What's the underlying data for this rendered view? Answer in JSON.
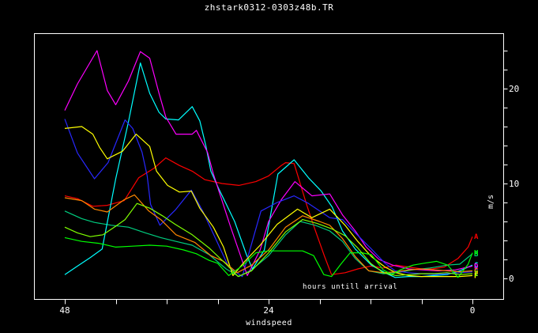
{
  "title": "zhstark0312-0303z48b.TR",
  "labels": {
    "xlabel": "windspeed",
    "inner_annotation": "hours untill arrival",
    "y_unit": "m/s"
  },
  "colors": {
    "background": "#000000",
    "frame": "#ffffff",
    "text": "#ffffff"
  },
  "chart_data": {
    "type": "line",
    "title": "zhstark0312-0303z48b.TR",
    "xlabel": "windspeed",
    "ylabel": "m/s",
    "inner_annotation": "hours untill arrival",
    "x_axis": {
      "unit": "hours untill arrival",
      "left_value": 48,
      "right_value": 0,
      "tick_step": 6,
      "labeled_ticks": [
        48,
        24,
        0
      ]
    },
    "y_axis": {
      "unit": "m/s",
      "min": -2.2,
      "max": 25.8,
      "tick_step": 2,
      "tick_min": 0,
      "tick_max": 24,
      "labeled_ticks": [
        0,
        10,
        20
      ],
      "side": "right"
    },
    "grid": false,
    "legend": "end-of-line letter markers",
    "series": [
      {
        "name": "A",
        "color": "#ff0000",
        "end_label": "A",
        "points": [
          [
            48,
            8.7
          ],
          [
            46.5,
            8.4
          ],
          [
            44.7,
            7.6
          ],
          [
            43,
            7.7
          ],
          [
            41,
            8.2
          ],
          [
            39.3,
            10.6
          ],
          [
            37.5,
            11.6
          ],
          [
            36.1,
            12.7
          ],
          [
            34.5,
            11.9
          ],
          [
            33,
            11.3
          ],
          [
            31.5,
            10.4
          ],
          [
            29.5,
            10.0
          ],
          [
            27.5,
            9.8
          ],
          [
            25.5,
            10.2
          ],
          [
            24,
            10.8
          ],
          [
            22.5,
            11.9
          ],
          [
            22,
            12.2
          ],
          [
            21,
            12.1
          ],
          [
            19.5,
            7.7
          ],
          [
            18.6,
            5.3
          ],
          [
            17.4,
            2.3
          ],
          [
            16.6,
            0.4
          ],
          [
            15,
            0.6
          ],
          [
            13.5,
            1.0
          ],
          [
            12,
            1.3
          ],
          [
            10.5,
            1.1
          ],
          [
            9,
            1.4
          ],
          [
            7.5,
            1.2
          ],
          [
            6,
            1.0
          ],
          [
            4.7,
            1.0
          ],
          [
            3.3,
            1.2
          ],
          [
            1.7,
            2.1
          ],
          [
            0.5,
            3.3
          ],
          [
            0,
            4.4
          ]
        ]
      },
      {
        "name": "B",
        "color": "#00cd7f",
        "end_label": "B",
        "points": [
          [
            48,
            7.1
          ],
          [
            46,
            6.3
          ],
          [
            44.5,
            5.9
          ],
          [
            42.5,
            5.6
          ],
          [
            40.5,
            5.4
          ],
          [
            38.5,
            4.8
          ],
          [
            36.7,
            4.3
          ],
          [
            34.9,
            3.9
          ],
          [
            33,
            3.5
          ],
          [
            31,
            2.5
          ],
          [
            29,
            1.0
          ],
          [
            27.5,
            0.2
          ],
          [
            26,
            0.9
          ],
          [
            24,
            2.4
          ],
          [
            22,
            4.6
          ],
          [
            20.3,
            6.0
          ],
          [
            18.5,
            5.6
          ],
          [
            16.8,
            5.0
          ],
          [
            15.3,
            3.9
          ],
          [
            13.8,
            2.1
          ],
          [
            12.2,
            0.8
          ],
          [
            10.5,
            0.5
          ],
          [
            9,
            0.6
          ],
          [
            7,
            0.9
          ],
          [
            5,
            1.1
          ],
          [
            3,
            1.4
          ],
          [
            1.5,
            1.5
          ],
          [
            0,
            2.6
          ]
        ]
      },
      {
        "name": "C",
        "color": "#00ffff",
        "end_label": "C",
        "points": [
          [
            48,
            0.4
          ],
          [
            46.5,
            1.3
          ],
          [
            45,
            2.2
          ],
          [
            43.6,
            3.1
          ],
          [
            42,
            10.5
          ],
          [
            40.5,
            16.5
          ],
          [
            39.1,
            22.7
          ],
          [
            38,
            19.5
          ],
          [
            36.9,
            17.5
          ],
          [
            36.1,
            16.8
          ],
          [
            34.6,
            16.7
          ],
          [
            33,
            18.1
          ],
          [
            32.1,
            16.6
          ],
          [
            31.4,
            14.0
          ],
          [
            30.8,
            11.3
          ],
          [
            29.9,
            9.5
          ],
          [
            28,
            6.0
          ],
          [
            26.6,
            2.5
          ],
          [
            25.9,
            1.0
          ],
          [
            24.5,
            3.0
          ],
          [
            22.9,
            11.0
          ],
          [
            21,
            12.5
          ],
          [
            19.3,
            10.6
          ],
          [
            17.8,
            9.2
          ],
          [
            16.5,
            7.5
          ],
          [
            15.3,
            5.0
          ],
          [
            13.8,
            3.1
          ],
          [
            11.9,
            1.4
          ],
          [
            10.3,
            0.6
          ],
          [
            9.1,
            0.1
          ],
          [
            7.5,
            0.2
          ],
          [
            6,
            0.2
          ],
          [
            4.5,
            0.3
          ],
          [
            3,
            0.4
          ],
          [
            1.5,
            0.8
          ],
          [
            0,
            1.4
          ]
        ]
      },
      {
        "name": "D",
        "color": "#ff00ff",
        "end_label": "D",
        "points": [
          [
            48,
            17.7
          ],
          [
            46.5,
            20.5
          ],
          [
            44.2,
            24.0
          ],
          [
            43,
            19.8
          ],
          [
            42,
            18.3
          ],
          [
            40.5,
            20.8
          ],
          [
            39.1,
            23.9
          ],
          [
            38,
            23.2
          ],
          [
            36.9,
            19.5
          ],
          [
            36.1,
            17.0
          ],
          [
            34.9,
            15.2
          ],
          [
            33,
            15.2
          ],
          [
            32.5,
            15.6
          ],
          [
            31.2,
            13.3
          ],
          [
            30.5,
            11.0
          ],
          [
            28.5,
            5.5
          ],
          [
            26.5,
            0.3
          ],
          [
            25,
            3.0
          ],
          [
            24,
            6.0
          ],
          [
            22.5,
            8.3
          ],
          [
            20.9,
            10.2
          ],
          [
            18.9,
            8.7
          ],
          [
            16.8,
            8.9
          ],
          [
            15.3,
            6.7
          ],
          [
            13.8,
            5.0
          ],
          [
            12.5,
            3.3
          ],
          [
            11,
            2.0
          ],
          [
            9.4,
            1.4
          ],
          [
            7.5,
            1.0
          ],
          [
            6,
            0.9
          ],
          [
            4,
            0.8
          ],
          [
            2,
            0.9
          ],
          [
            0,
            1.3
          ]
        ]
      },
      {
        "name": "E",
        "color": "#2828ff",
        "end_label": "E",
        "points": [
          [
            48,
            16.8
          ],
          [
            46.5,
            13.2
          ],
          [
            44.5,
            10.5
          ],
          [
            42.9,
            12.2
          ],
          [
            40.9,
            16.7
          ],
          [
            40,
            15.8
          ],
          [
            38.9,
            13.3
          ],
          [
            38.3,
            10.8
          ],
          [
            37.9,
            7.8
          ],
          [
            36.8,
            5.6
          ],
          [
            35,
            7.2
          ],
          [
            33.1,
            9.3
          ],
          [
            31.7,
            7.0
          ],
          [
            30.2,
            4.1
          ],
          [
            28.7,
            1.2
          ],
          [
            27.1,
            0.2
          ],
          [
            24.9,
            7.1
          ],
          [
            23,
            8.0
          ],
          [
            21,
            8.7
          ],
          [
            19.3,
            7.9
          ],
          [
            16.8,
            6.4
          ],
          [
            15.3,
            6.2
          ],
          [
            13.8,
            4.8
          ],
          [
            11.9,
            3.1
          ],
          [
            10.3,
            1.6
          ],
          [
            9.1,
            0.8
          ],
          [
            7.5,
            0.6
          ],
          [
            6,
            0.5
          ],
          [
            4.5,
            0.4
          ],
          [
            3,
            0.5
          ],
          [
            1.5,
            0.6
          ],
          [
            0,
            0.7
          ]
        ]
      },
      {
        "name": "F",
        "color": "#ffff00",
        "end_label": "F",
        "points": [
          [
            48,
            15.8
          ],
          [
            46,
            16.0
          ],
          [
            44.7,
            15.2
          ],
          [
            43.9,
            13.8
          ],
          [
            43,
            12.6
          ],
          [
            41.2,
            13.4
          ],
          [
            39.6,
            15.2
          ],
          [
            38,
            13.9
          ],
          [
            37.2,
            11.3
          ],
          [
            35.9,
            9.8
          ],
          [
            34.5,
            9.1
          ],
          [
            33.1,
            9.2
          ],
          [
            32.1,
            7.4
          ],
          [
            30.5,
            5.4
          ],
          [
            29.3,
            3.3
          ],
          [
            28.2,
            0.3
          ],
          [
            26.8,
            1.8
          ],
          [
            25,
            3.5
          ],
          [
            23,
            5.7
          ],
          [
            20.6,
            7.3
          ],
          [
            18.9,
            6.4
          ],
          [
            16.8,
            7.3
          ],
          [
            15,
            5.6
          ],
          [
            13.5,
            3.9
          ],
          [
            11.9,
            2.3
          ],
          [
            10.3,
            1.2
          ],
          [
            9,
            0.6
          ],
          [
            7.5,
            0.3
          ],
          [
            6,
            0.2
          ],
          [
            4.5,
            0.2
          ],
          [
            3,
            0.2
          ],
          [
            1.5,
            0.2
          ],
          [
            0,
            0.3
          ]
        ]
      },
      {
        "name": "G",
        "color": "#ff8700",
        "end_label": "G",
        "points": [
          [
            48,
            8.5
          ],
          [
            46,
            8.2
          ],
          [
            44.5,
            7.3
          ],
          [
            43,
            7.0
          ],
          [
            41,
            8.3
          ],
          [
            39.8,
            8.8
          ],
          [
            38.1,
            7.1
          ],
          [
            36.7,
            6.2
          ],
          [
            34.9,
            4.6
          ],
          [
            32.7,
            3.8
          ],
          [
            30.8,
            2.4
          ],
          [
            29.3,
            1.8
          ],
          [
            27.7,
            0.6
          ],
          [
            26,
            1.4
          ],
          [
            24,
            3.0
          ],
          [
            22,
            5.4
          ],
          [
            20,
            6.6
          ],
          [
            18,
            6.0
          ],
          [
            16.8,
            5.6
          ],
          [
            15.3,
            4.2
          ],
          [
            13.8,
            2.3
          ],
          [
            12.2,
            0.8
          ],
          [
            10.5,
            0.6
          ],
          [
            9,
            0.7
          ],
          [
            7.5,
            0.9
          ],
          [
            6,
            1.0
          ],
          [
            4.5,
            0.9
          ],
          [
            3,
            0.8
          ],
          [
            1.5,
            0.7
          ],
          [
            0,
            0.8
          ]
        ]
      },
      {
        "name": "H",
        "color": "#00ff00",
        "end_label": "H",
        "points": [
          [
            48,
            4.3
          ],
          [
            46,
            3.9
          ],
          [
            44,
            3.7
          ],
          [
            42,
            3.3
          ],
          [
            40,
            3.4
          ],
          [
            38,
            3.5
          ],
          [
            36,
            3.4
          ],
          [
            34,
            3.0
          ],
          [
            32.5,
            2.6
          ],
          [
            31,
            1.9
          ],
          [
            30,
            1.6
          ],
          [
            28.7,
            0.3
          ],
          [
            27,
            1.4
          ],
          [
            25.5,
            2.7
          ],
          [
            24,
            2.9
          ],
          [
            22,
            2.9
          ],
          [
            20,
            2.9
          ],
          [
            18.7,
            2.4
          ],
          [
            17.5,
            0.4
          ],
          [
            16.6,
            0.2
          ],
          [
            15.5,
            1.5
          ],
          [
            14.4,
            2.7
          ],
          [
            13,
            2.7
          ],
          [
            11.9,
            2.5
          ],
          [
            10.5,
            0.9
          ],
          [
            9.5,
            0.4
          ],
          [
            8.5,
            0.9
          ],
          [
            7,
            1.4
          ],
          [
            5.7,
            1.6
          ],
          [
            4.2,
            1.8
          ],
          [
            2.9,
            1.4
          ],
          [
            1.7,
            0.1
          ],
          [
            0.5,
            1.5
          ],
          [
            0,
            2.7
          ]
        ]
      },
      {
        "name": "I",
        "color": "#7fff00",
        "end_label": "I",
        "points": [
          [
            48,
            5.4
          ],
          [
            46.5,
            4.8
          ],
          [
            45,
            4.4
          ],
          [
            43.5,
            4.6
          ],
          [
            42,
            5.5
          ],
          [
            40.9,
            6.2
          ],
          [
            39.5,
            7.9
          ],
          [
            38,
            7.4
          ],
          [
            36.5,
            6.6
          ],
          [
            35,
            5.7
          ],
          [
            33,
            4.6
          ],
          [
            31,
            3.2
          ],
          [
            29,
            1.5
          ],
          [
            27.6,
            0.2
          ],
          [
            26,
            0.8
          ],
          [
            24,
            2.7
          ],
          [
            22,
            4.9
          ],
          [
            20,
            6.2
          ],
          [
            18.3,
            5.8
          ],
          [
            16.5,
            5.2
          ],
          [
            15,
            4.5
          ],
          [
            13.5,
            3.2
          ],
          [
            12,
            1.6
          ],
          [
            10.5,
            0.6
          ],
          [
            9,
            0.3
          ],
          [
            7.5,
            0.4
          ],
          [
            6,
            0.5
          ],
          [
            4.5,
            0.5
          ],
          [
            3,
            0.6
          ],
          [
            1.5,
            0.4
          ],
          [
            0,
            0.5
          ]
        ]
      }
    ]
  }
}
